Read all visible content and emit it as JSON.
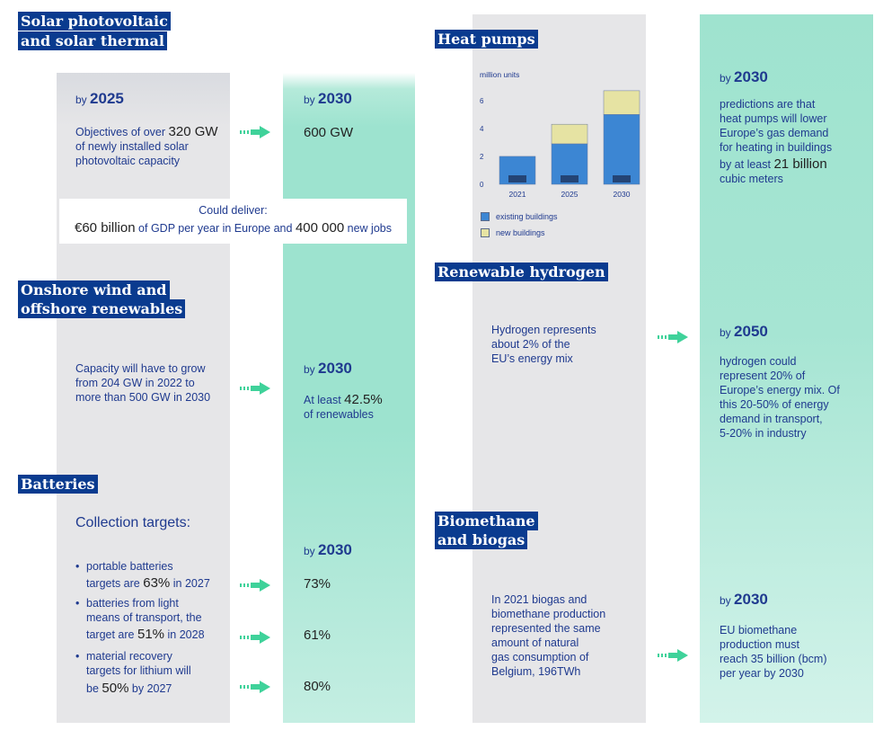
{
  "solar": {
    "title_line1": "Solar photovoltaic",
    "title_line2": "and solar thermal",
    "by_word": "by",
    "year_left": "2025",
    "year_right": "2030",
    "objectives_pre": "Objectives of over",
    "objectives_gw": "320 GW",
    "objectives_post_1": "of newly installed solar",
    "objectives_post_2": "photovoltaic capacity",
    "target_2030": "600 GW",
    "callout_line1": "Could deliver:",
    "callout_gdp": "€60 billion",
    "callout_mid": "of GDP per year in Europe and",
    "callout_jobs": "400 000",
    "callout_end": "new jobs"
  },
  "wind": {
    "title_line1": "Onshore wind and",
    "title_line2": "offshore renewables",
    "left_line1": "Capacity will have to grow",
    "left_line2": "from 204 GW in 2022 to",
    "left_line3": "more than 500 GW in 2030",
    "by_word": "by",
    "year": "2030",
    "at_least": "At least",
    "pct": "42.5%",
    "of_renewables": "of renewables"
  },
  "batteries": {
    "title": "Batteries",
    "collection": "Collection targets:",
    "by_word": "by",
    "year": "2030",
    "b1_line1": "portable batteries",
    "b1_pre": "targets are",
    "b1_pct": "63%",
    "b1_post": "in 2027",
    "b2_line1": "batteries from light",
    "b2_line2": "means of transport, the",
    "b2_pre": "target are",
    "b2_pct": "51%",
    "b2_post": "in 2028",
    "b3_line1": "material recovery",
    "b3_line2": "targets for lithium will",
    "b3_pre": "be",
    "b3_pct": "50%",
    "b3_post": "by 2027",
    "t1": "73%",
    "t2": "61%",
    "t3": "80%"
  },
  "heat_pumps": {
    "title": "Heat pumps",
    "by_word": "by",
    "year": "2030",
    "pred_line1": "predictions are that",
    "pred_line2": "heat pumps will lower",
    "pred_line3": "Europe’s gas demand",
    "pred_line4": "for heating in buildings",
    "by_at_least": "by at least",
    "billion": "21 billion",
    "cubic": "cubic meters"
  },
  "chart_data": {
    "type": "bar",
    "ylabel": "million units",
    "categories": [
      "2021",
      "2025",
      "2030"
    ],
    "yticks": [
      "0",
      "2",
      "4",
      "6"
    ],
    "ylim": [
      0,
      6.5
    ],
    "series": [
      {
        "name": "existing buildings",
        "values": [
          2.0,
          2.9,
          5.0
        ]
      },
      {
        "name": "new buildings",
        "values": [
          0.0,
          1.4,
          1.7
        ]
      }
    ],
    "colors": {
      "existing": "#3c86d3",
      "new": "#e6e3a3"
    }
  },
  "hydrogen": {
    "title": "Renewable hydrogen",
    "left_line1": "Hydrogen represents",
    "left_line2": "about 2% of the",
    "left_line3": "EU’s energy mix",
    "by_word": "by",
    "year": "2050",
    "r1": "hydrogen could",
    "r2": "represent 20% of",
    "r3": "Europe’s energy mix. Of",
    "r4": "this 20-50% of energy",
    "r5": "demand in transport,",
    "r6": "5-20% in industry"
  },
  "biomethane": {
    "title_line1": "Biomethane",
    "title_line2": "and biogas",
    "l1": "In 2021 biogas and",
    "l2": "biomethane production",
    "l3": "represented the same",
    "l4": "amount of natural",
    "l5": "gas consumption of",
    "l6": "Belgium, 196TWh",
    "by_word": "by",
    "year": "2030",
    "r1": "EU biomethane",
    "r2": "production must",
    "r3": "reach 35 billion (bcm)",
    "r4": "per year by 2030"
  },
  "colors": {
    "navy": "#0a3b8f",
    "text_blue": "#1f3a8f",
    "arrow_green": "#3fd29a",
    "panel_gray": "#e6e6e8",
    "panel_green": "#9de3cf"
  }
}
